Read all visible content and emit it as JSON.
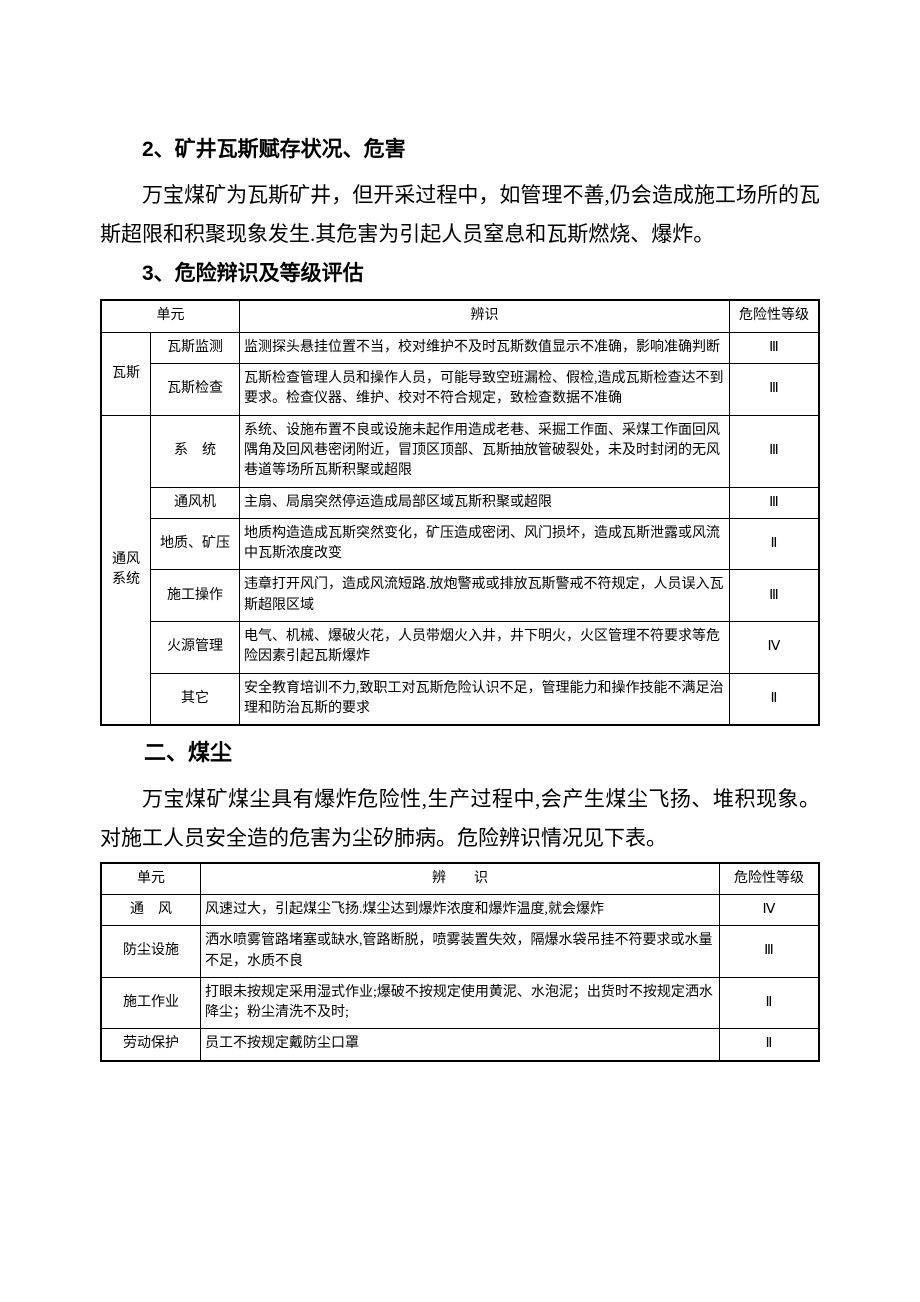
{
  "section2": {
    "heading": "2、矿井瓦斯赋存状况、危害",
    "body": "万宝煤矿为瓦斯矿井，但开采过程中，如管理不善,仍会造成施工场所的瓦斯超限和积聚现象发生.其危害为引起人员窒息和瓦斯燃烧、爆炸。"
  },
  "section3": {
    "heading": "3、危险辩识及等级评估"
  },
  "table1": {
    "headers": {
      "unit": "单元",
      "desc": "辨识",
      "level": "危险性等级"
    },
    "groups": [
      {
        "category": "瓦斯",
        "rows": [
          {
            "unit": "瓦斯监测",
            "desc": "监测探头悬挂位置不当，校对维护不及时瓦斯数值显示不准确，影响准确判断",
            "level": "Ⅲ"
          },
          {
            "unit": "瓦斯检查",
            "desc": "瓦斯检查管理人员和操作人员，可能导致空班漏检、假检,造成瓦斯检查达不到要求。检查仪器、维护、校对不符合规定，致检查数据不准确",
            "level": "Ⅲ"
          }
        ]
      },
      {
        "category": "通风系统",
        "rows": [
          {
            "unit": "系　统",
            "desc": "系统、设施布置不良或设施未起作用造成老巷、采掘工作面、采煤工作面回风隅角及回风巷密闭附近，冒顶区顶部、瓦斯抽放管破裂处，未及时封闭的无风巷道等场所瓦斯积聚或超限",
            "level": "Ⅲ"
          },
          {
            "unit": "通风机",
            "desc": "主扇、局扇突然停运造成局部区域瓦斯积聚或超限",
            "level": "Ⅲ"
          },
          {
            "unit": "地质、矿压",
            "desc": "地质构造造成瓦斯突然变化，矿压造成密闭、风门损坏，造成瓦斯泄露或风流中瓦斯浓度改变",
            "level": "Ⅱ"
          },
          {
            "unit": "施工操作",
            "desc": "违章打开风门，造成风流短路.放炮警戒或排放瓦斯警戒不符规定，人员误入瓦斯超限区域",
            "level": "Ⅲ"
          },
          {
            "unit": "火源管理",
            "desc": "电气、机械、爆破火花，人员带烟火入井，井下明火，火区管理不符要求等危险因素引起瓦斯爆炸",
            "level": "Ⅳ"
          },
          {
            "unit": "其它",
            "desc": "安全教育培训不力,致职工对瓦斯危险认识不足，管理能力和操作技能不满足治理和防治瓦斯的要求",
            "level": "Ⅱ"
          }
        ]
      }
    ]
  },
  "sectionDust": {
    "heading": "二、煤尘",
    "body": "万宝煤矿煤尘具有爆炸危险性,生产过程中,会产生煤尘飞扬、堆积现象。对施工人员安全造的危害为尘矽肺病。危险辨识情况见下表。"
  },
  "table2": {
    "headers": {
      "unit": "单元",
      "desc": "辨　　识",
      "level": "危险性等级"
    },
    "rows": [
      {
        "unit": "通　风",
        "desc": "风速过大，引起煤尘飞扬.煤尘达到爆炸浓度和爆炸温度,就会爆炸",
        "level": "Ⅳ"
      },
      {
        "unit": "防尘设施",
        "desc": "洒水喷雾管路堵塞或缺水,管路断脱，喷雾装置失效，隔爆水袋吊挂不符要求或水量不足，水质不良",
        "level": "Ⅲ"
      },
      {
        "unit": "施工作业",
        "desc": "打眼未按规定采用湿式作业;爆破不按规定使用黄泥、水泡泥；出货时不按规定洒水降尘；粉尘清洗不及时;",
        "level": "Ⅱ"
      },
      {
        "unit": "劳动保护",
        "desc": "员工不按规定戴防尘口罩",
        "level": "Ⅱ"
      }
    ]
  }
}
